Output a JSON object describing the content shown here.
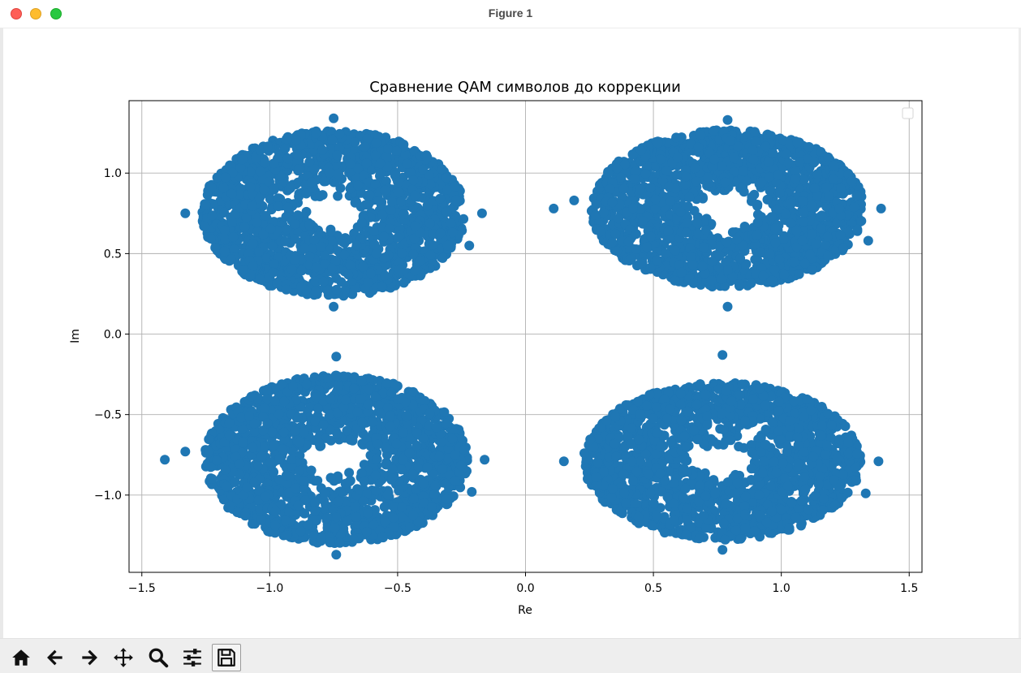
{
  "window": {
    "title": "Figure 1"
  },
  "toolbar": {
    "buttons": [
      {
        "name": "home-button",
        "icon": "home-icon"
      },
      {
        "name": "back-button",
        "icon": "arrow-left-icon"
      },
      {
        "name": "forward-button",
        "icon": "arrow-right-icon"
      },
      {
        "name": "pan-button",
        "icon": "move-icon"
      },
      {
        "name": "zoom-button",
        "icon": "magnifier-icon"
      },
      {
        "name": "configure-subplots-button",
        "icon": "sliders-icon"
      },
      {
        "name": "save-button",
        "icon": "floppy-disk-icon"
      }
    ]
  },
  "chart_data": {
    "type": "scatter",
    "title": "Сравнение QAM символов до коррекции",
    "xlabel": "Re",
    "ylabel": "Im",
    "xlim": [
      -1.55,
      1.55
    ],
    "ylim": [
      -1.48,
      1.45
    ],
    "xticks": [
      -1.5,
      -1.0,
      -0.5,
      0.0,
      0.5,
      1.0,
      1.5
    ],
    "yticks": [
      -1.0,
      -0.5,
      0.0,
      0.5,
      1.0
    ],
    "xtick_labels": [
      "−1.5",
      "−1.0",
      "−0.5",
      "0.0",
      "0.5",
      "1.0",
      "1.5"
    ],
    "ytick_labels": [
      "−1.0",
      "−0.5",
      "0.0",
      "0.5",
      "1.0"
    ],
    "grid": true,
    "legend": "top-right, empty",
    "marker_color": "#1f77b4",
    "clusters": [
      {
        "center": [
          -0.75,
          0.75
        ],
        "x_extent": [
          -1.33,
          -0.17
        ],
        "y_extent": [
          0.17,
          1.34
        ]
      },
      {
        "center": [
          0.79,
          0.78
        ],
        "x_extent": [
          0.11,
          1.39
        ],
        "y_extent": [
          0.17,
          1.33
        ]
      },
      {
        "center": [
          -0.74,
          -0.78
        ],
        "x_extent": [
          -1.41,
          -0.16
        ],
        "y_extent": [
          -1.37,
          -0.14
        ]
      },
      {
        "center": [
          0.77,
          -0.79
        ],
        "x_extent": [
          0.15,
          1.38
        ],
        "y_extent": [
          -1.34,
          -0.13
        ]
      }
    ]
  }
}
